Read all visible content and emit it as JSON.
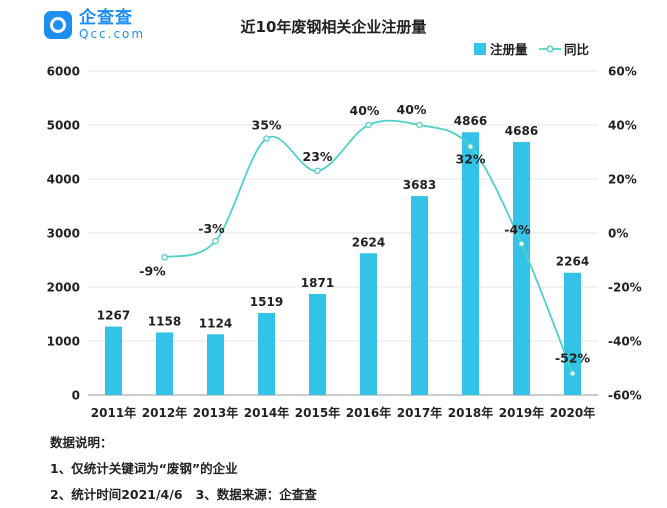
{
  "logo": {
    "cn": "企查查",
    "en": "Qcc.com",
    "icon": "magnifier-logo-icon"
  },
  "chart_data": {
    "type": "bar",
    "title": "近10年废钢相关企业注册量",
    "categories": [
      "2011年",
      "2012年",
      "2013年",
      "2014年",
      "2015年",
      "2016年",
      "2017年",
      "2018年",
      "2019年",
      "2020年"
    ],
    "series": [
      {
        "name": "注册量",
        "type": "bar",
        "axis": "left",
        "color": "#33c3e8",
        "values": [
          1267,
          1158,
          1124,
          1519,
          1871,
          2624,
          3683,
          4866,
          4686,
          2264
        ]
      },
      {
        "name": "同比",
        "type": "line",
        "axis": "right",
        "color": "#4fd1c9",
        "values": [
          null,
          -9,
          -3,
          35,
          23,
          40,
          40,
          32,
          -4,
          -52
        ],
        "labels": [
          "",
          "-9%",
          "-3%",
          "35%",
          "23%",
          "40%",
          "40%",
          "32%",
          "-4%",
          "-52%"
        ]
      }
    ],
    "y_left": {
      "min": 0,
      "max": 6000,
      "ticks": [
        "0",
        "1000",
        "2000",
        "3000",
        "4000",
        "5000",
        "6000"
      ]
    },
    "y_right": {
      "min": -60,
      "max": 60,
      "ticks": [
        "-60%",
        "-40%",
        "-20%",
        "0%",
        "20%",
        "40%",
        "60%"
      ]
    },
    "legend": {
      "position": "top-right"
    },
    "grid": true
  },
  "notes": {
    "heading": "数据说明：",
    "line1": "1、仅统计关键词为“废钢”的企业",
    "line2": "2、统计时间2021/4/6   3、数据来源：企查查"
  }
}
